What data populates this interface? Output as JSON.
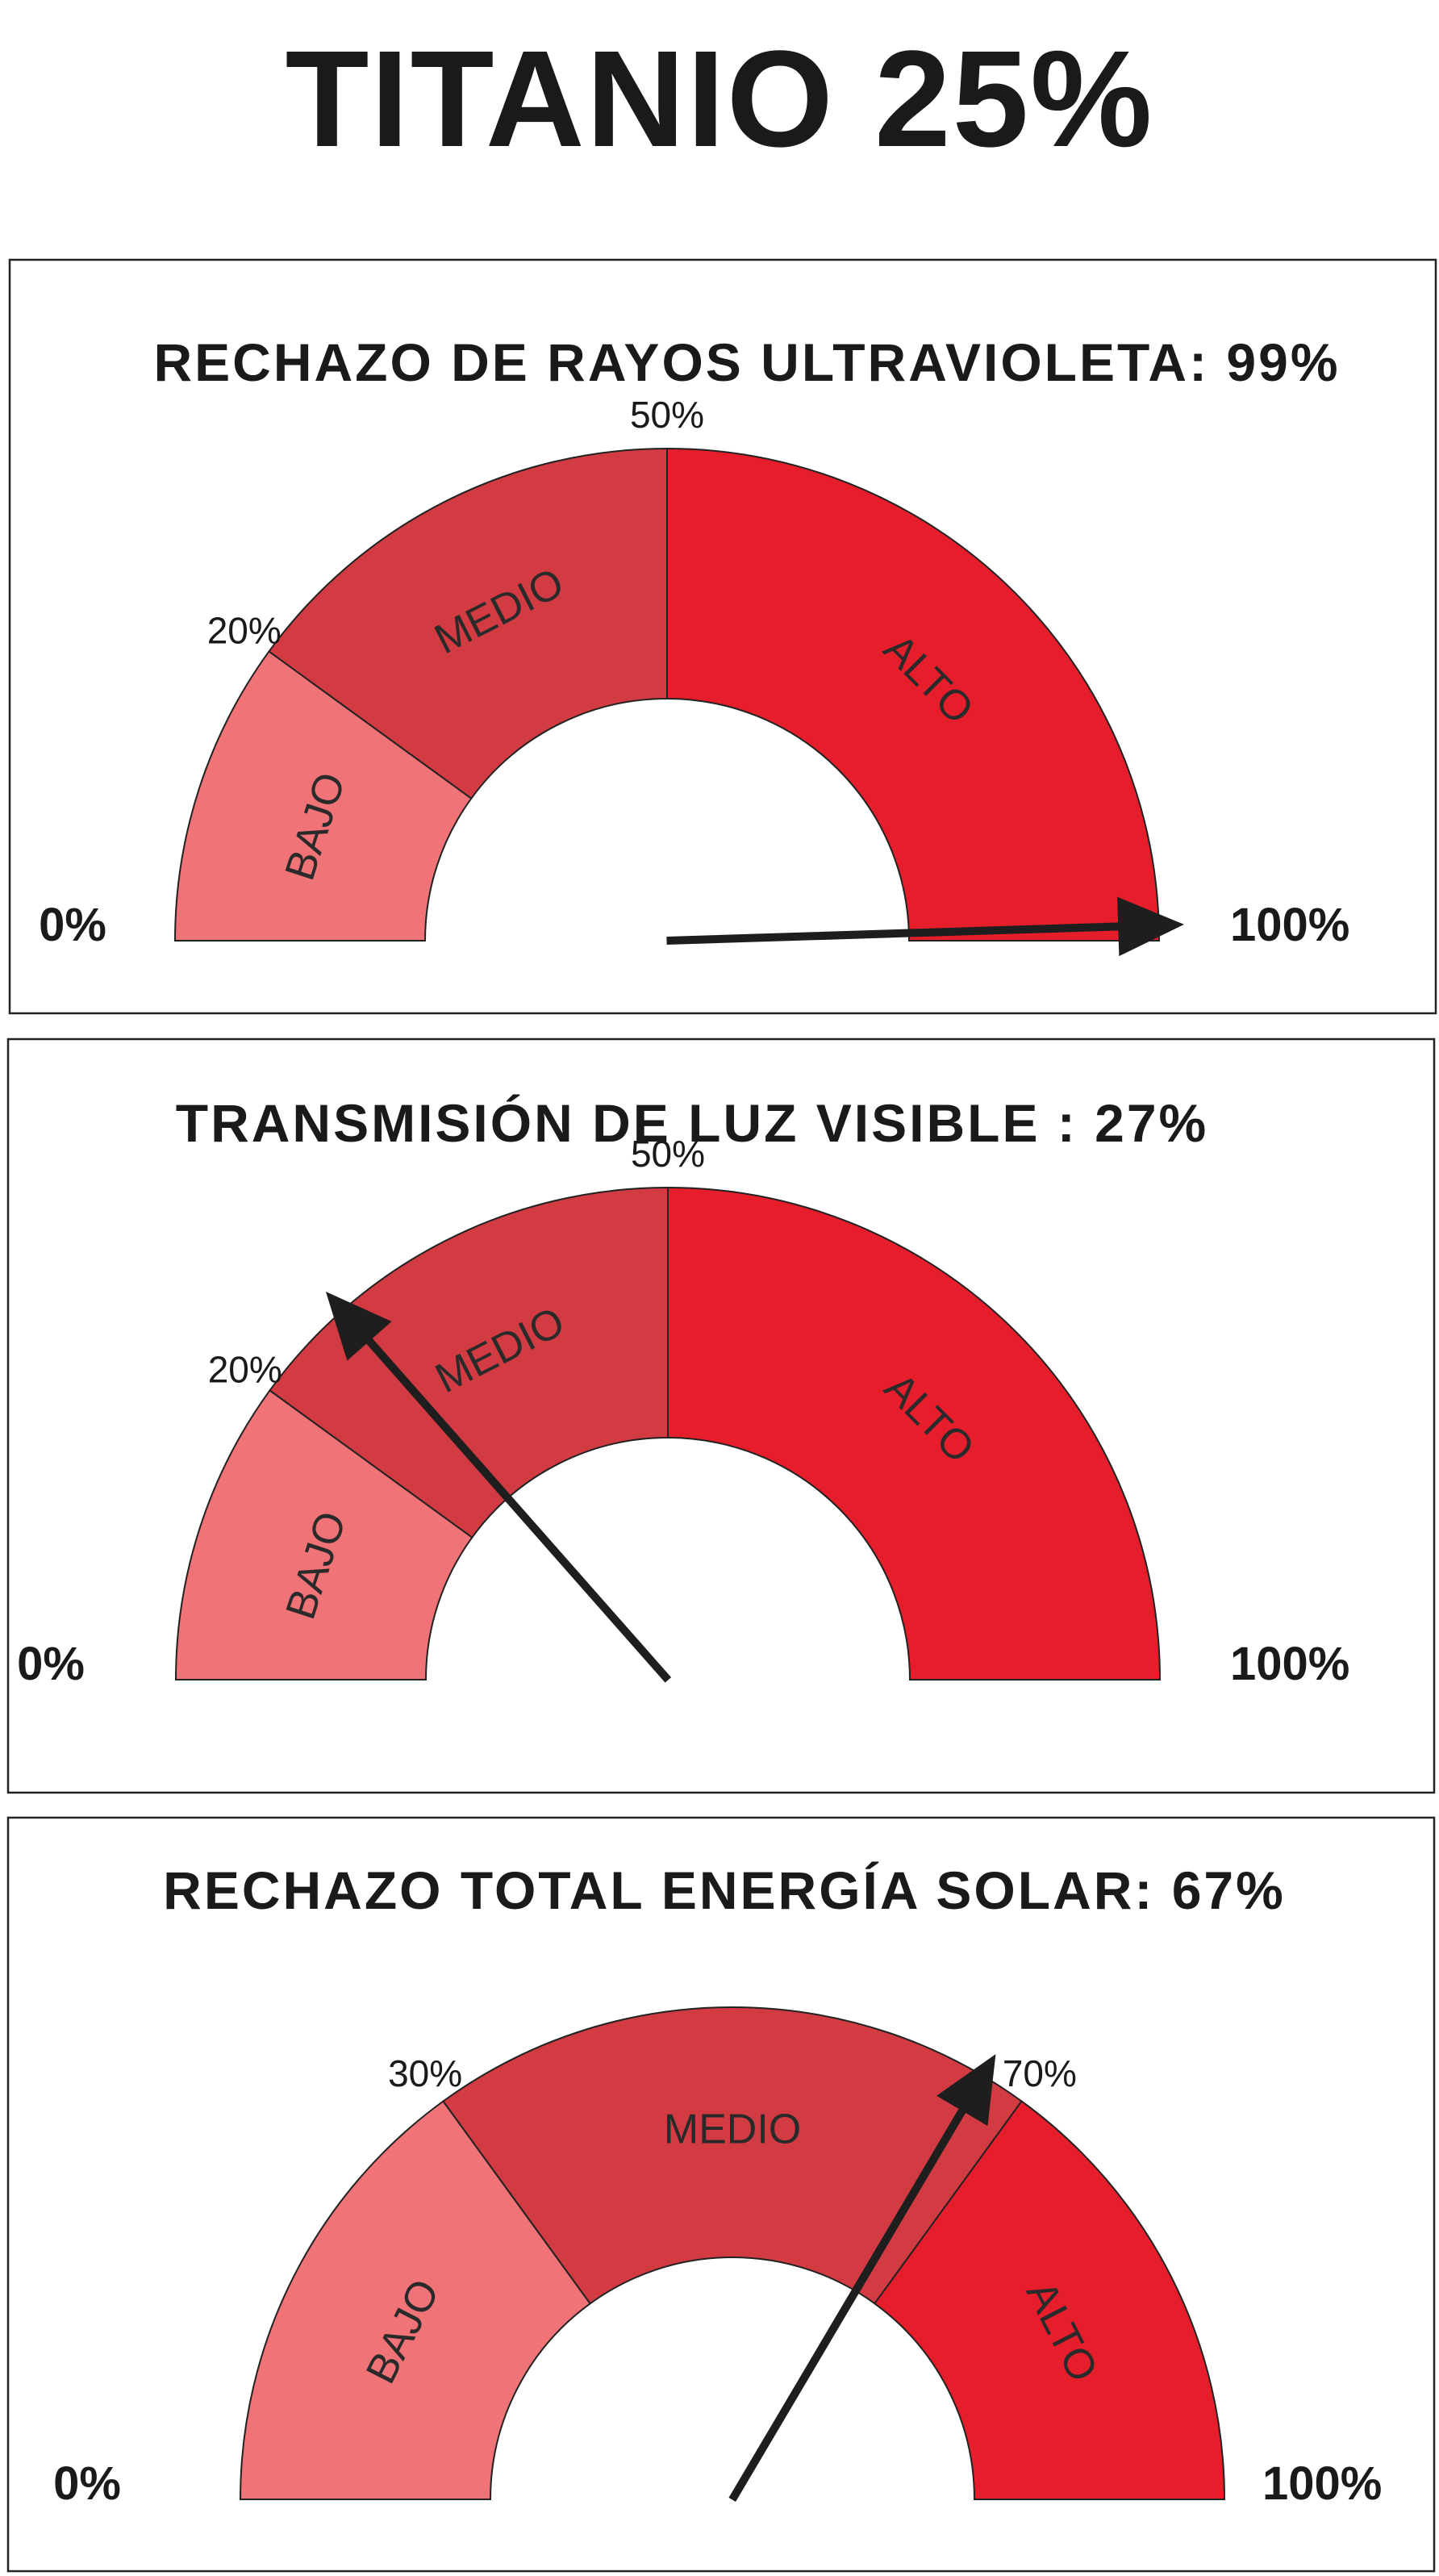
{
  "title": "TITANIO 25%",
  "colors": {
    "bajo": "#f07378",
    "medio": "#d23b42",
    "alto": "#e61e2b",
    "needle": "#1e1e1e"
  },
  "chart_data": [
    {
      "type": "gauge",
      "title": "RECHAZO DE RAYOS ULTRAVIOLETA: 99%",
      "value": 99,
      "min_label": "0%",
      "max_label": "100%",
      "range": [
        0,
        100
      ],
      "thresholds": [
        20,
        50
      ],
      "threshold_labels": [
        "20%",
        "50%"
      ],
      "zones": [
        "BAJO",
        "MEDIO",
        "ALTO"
      ]
    },
    {
      "type": "gauge",
      "title": "TRANSMISIÓN DE LUZ VISIBLE : 27%",
      "value": 27,
      "min_label": "0%",
      "max_label": "100%",
      "range": [
        0,
        100
      ],
      "thresholds": [
        20,
        50
      ],
      "threshold_labels": [
        "20%",
        "50%"
      ],
      "zones": [
        "BAJO",
        "MEDIO",
        "ALTO"
      ]
    },
    {
      "type": "gauge",
      "title": "RECHAZO TOTAL ENERGÍA SOLAR: 67%",
      "value": 67,
      "min_label": "0%",
      "max_label": "100%",
      "range": [
        0,
        100
      ],
      "thresholds": [
        30,
        70
      ],
      "threshold_labels": [
        "30%",
        "70%"
      ],
      "zones": [
        "BAJO",
        "MEDIO",
        "ALTO"
      ]
    }
  ]
}
